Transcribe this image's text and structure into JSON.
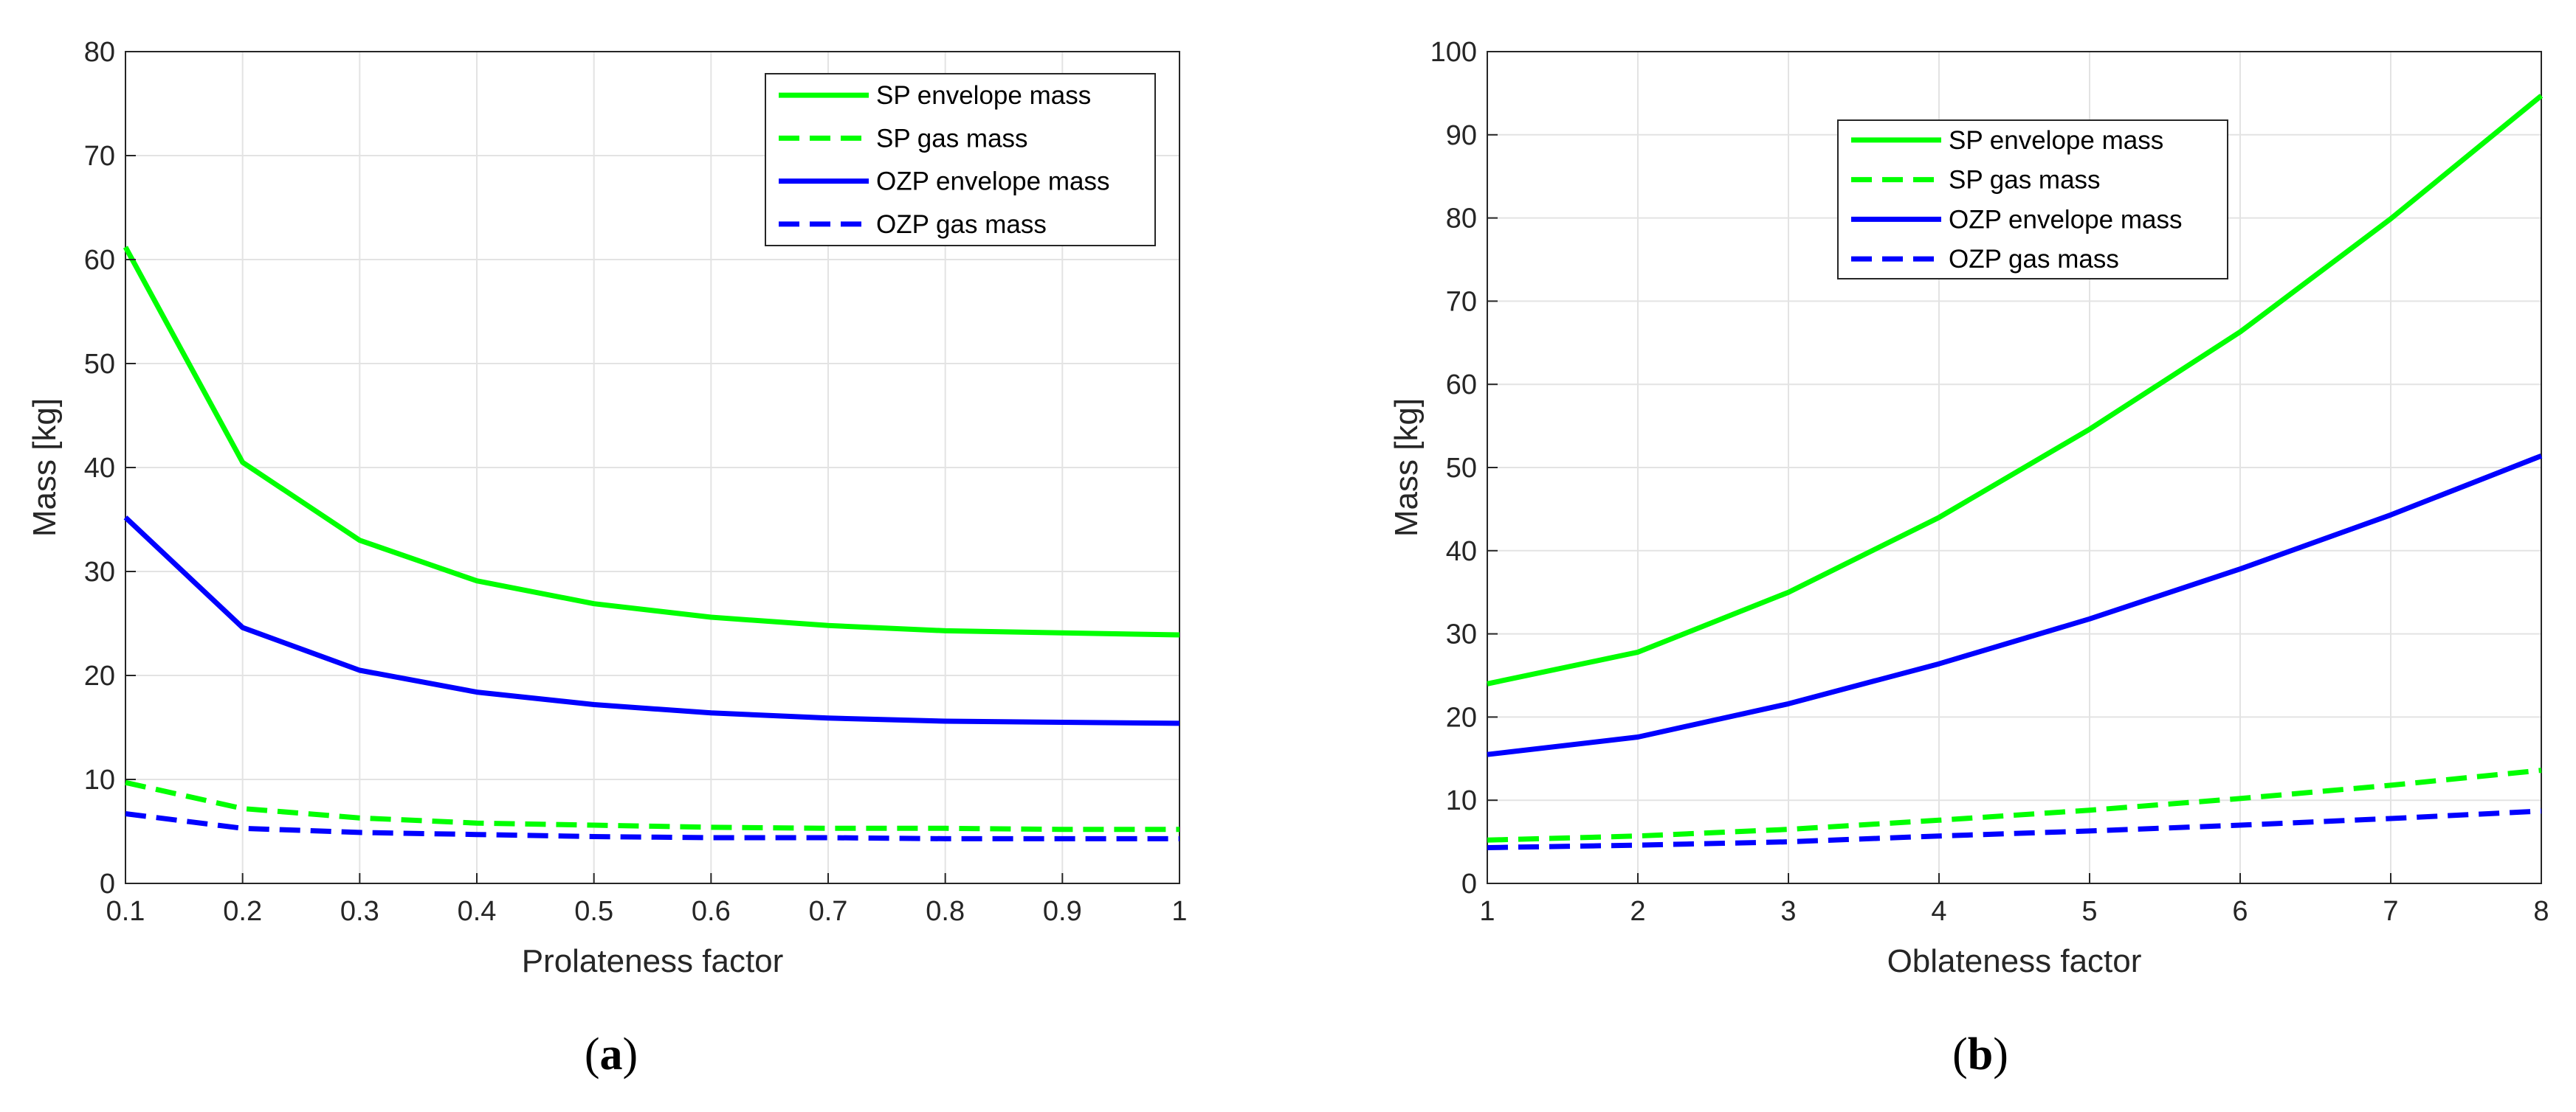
{
  "figure": {
    "panels": [
      "a",
      "b"
    ]
  },
  "chart_data": [
    {
      "type": "line",
      "panel_label": "a",
      "caption_open": "(",
      "caption_letter": "a",
      "caption_close": ")",
      "xlabel": "Prolateness factor",
      "ylabel": "Mass [kg]",
      "xlim": [
        0.1,
        1
      ],
      "ylim": [
        0,
        80
      ],
      "xticks": [
        0.1,
        0.2,
        0.3,
        0.4,
        0.5,
        0.6,
        0.7,
        0.8,
        0.9,
        1
      ],
      "xtick_labels": [
        "0.1",
        "0.2",
        "0.3",
        "0.4",
        "0.5",
        "0.6",
        "0.7",
        "0.8",
        "0.9",
        "1"
      ],
      "yticks": [
        0,
        10,
        20,
        30,
        40,
        50,
        60,
        70,
        80
      ],
      "ytick_labels": [
        "0",
        "10",
        "20",
        "30",
        "40",
        "50",
        "60",
        "70",
        "80"
      ],
      "grid": true,
      "legend_position": "top-right",
      "x": [
        0.1,
        0.2,
        0.3,
        0.4,
        0.5,
        0.6,
        0.7,
        0.8,
        0.9,
        1.0
      ],
      "series": [
        {
          "name": "SP envelope mass",
          "color": "#00ff00",
          "style": "solid",
          "values": [
            61.2,
            40.5,
            33.0,
            29.1,
            26.9,
            25.6,
            24.8,
            24.3,
            24.1,
            23.9
          ]
        },
        {
          "name": "SP gas mass",
          "color": "#00ff00",
          "style": "dashed",
          "values": [
            9.7,
            7.2,
            6.3,
            5.8,
            5.6,
            5.4,
            5.3,
            5.3,
            5.2,
            5.2
          ]
        },
        {
          "name": "OZP envelope mass",
          "color": "#0000ff",
          "style": "solid",
          "values": [
            35.2,
            24.6,
            20.5,
            18.4,
            17.2,
            16.4,
            15.9,
            15.6,
            15.5,
            15.4
          ]
        },
        {
          "name": "OZP gas mass",
          "color": "#0000ff",
          "style": "dashed",
          "values": [
            6.7,
            5.3,
            4.9,
            4.7,
            4.5,
            4.4,
            4.4,
            4.3,
            4.3,
            4.3
          ]
        }
      ]
    },
    {
      "type": "line",
      "panel_label": "b",
      "caption_open": "(",
      "caption_letter": "b",
      "caption_close": ")",
      "xlabel": "Oblateness factor",
      "ylabel": "Mass [kg]",
      "xlim": [
        1,
        8
      ],
      "ylim": [
        0,
        100
      ],
      "xticks": [
        1,
        2,
        3,
        4,
        5,
        6,
        7,
        8
      ],
      "xtick_labels": [
        "1",
        "2",
        "3",
        "4",
        "5",
        "6",
        "7",
        "8"
      ],
      "yticks": [
        0,
        10,
        20,
        30,
        40,
        50,
        60,
        70,
        80,
        90,
        100
      ],
      "ytick_labels": [
        "0",
        "10",
        "20",
        "30",
        "40",
        "50",
        "60",
        "70",
        "80",
        "90",
        "100"
      ],
      "grid": true,
      "legend_position": "top-left",
      "x": [
        1,
        2,
        3,
        4,
        5,
        6,
        7,
        8
      ],
      "series": [
        {
          "name": "SP envelope mass",
          "color": "#00ff00",
          "style": "solid",
          "values": [
            24.0,
            27.8,
            35.0,
            44.0,
            54.6,
            66.3,
            79.9,
            94.7
          ]
        },
        {
          "name": "SP gas mass",
          "color": "#00ff00",
          "style": "dashed",
          "values": [
            5.2,
            5.7,
            6.5,
            7.6,
            8.8,
            10.2,
            11.8,
            13.6
          ]
        },
        {
          "name": "OZP envelope mass",
          "color": "#0000ff",
          "style": "solid",
          "values": [
            15.5,
            17.6,
            21.6,
            26.4,
            31.8,
            37.8,
            44.3,
            51.4
          ]
        },
        {
          "name": "OZP gas mass",
          "color": "#0000ff",
          "style": "dashed",
          "values": [
            4.3,
            4.6,
            5.0,
            5.7,
            6.3,
            7.0,
            7.8,
            8.7
          ]
        }
      ]
    }
  ]
}
